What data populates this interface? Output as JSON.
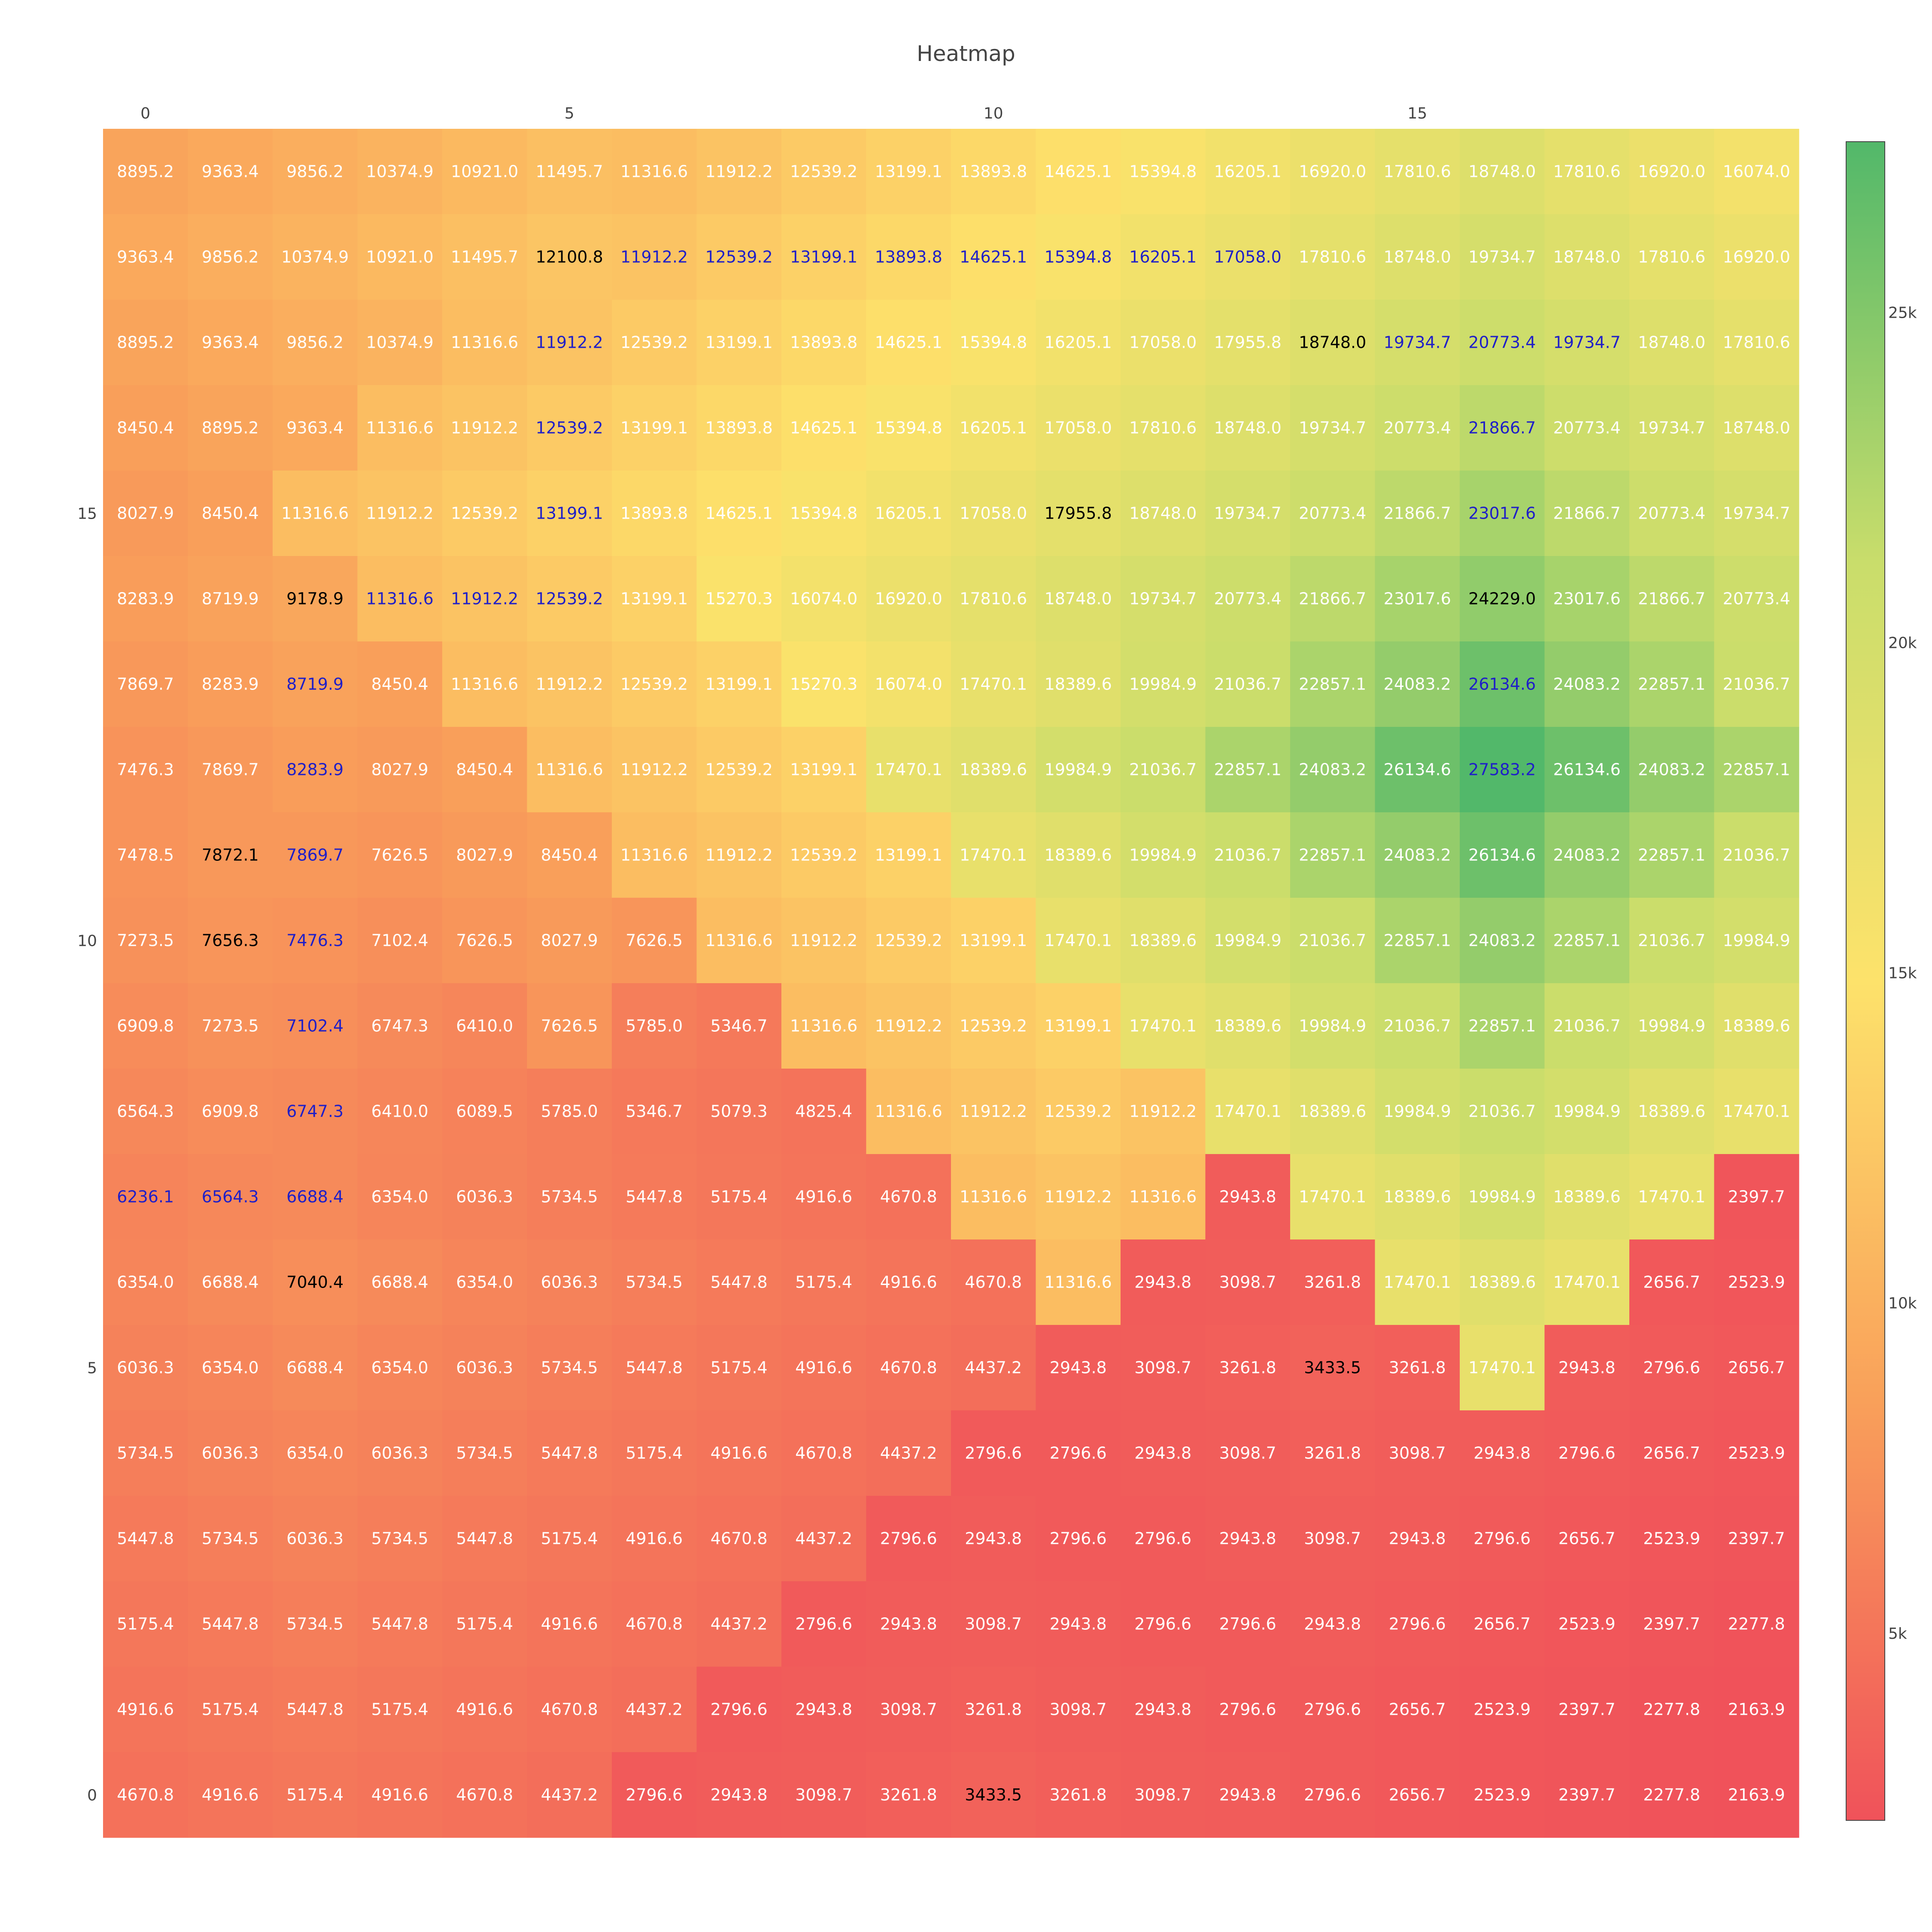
{
  "chart_data": {
    "type": "heatmap",
    "title": "Heatmap",
    "x_ticks": [
      "0",
      "5",
      "10",
      "15"
    ],
    "y_ticks": [
      "0",
      "5",
      "10",
      "15"
    ],
    "x_tick_values": [
      0,
      5,
      10,
      15
    ],
    "y_tick_values": [
      0,
      5,
      10,
      15
    ],
    "colorbar": {
      "ticks": [
        "5k",
        "10k",
        "15k",
        "20k",
        "25k"
      ],
      "tick_values": [
        5000,
        10000,
        15000,
        20000,
        25000
      ],
      "zmin": 2163.9,
      "zmax": 27583.2,
      "colorscale": [
        "#f0525a",
        "#f9a05a",
        "#fde26b",
        "#c9dd6b",
        "#52b86a"
      ]
    },
    "rows_top_to_bottom": [
      [
        8895.2,
        9363.4,
        9856.2,
        10374.9,
        10921.0,
        11495.7,
        11316.6,
        11912.2,
        12539.2,
        13199.1,
        13893.8,
        14625.1,
        15394.8,
        16205.1,
        16920.0,
        17810.6,
        18748.0,
        17810.6,
        16920.0,
        16074.0
      ],
      [
        9363.4,
        9856.2,
        10374.9,
        10921.0,
        11495.7,
        12100.8,
        11912.2,
        12539.2,
        13199.1,
        13893.8,
        14625.1,
        15394.8,
        16205.1,
        17058.0,
        17810.6,
        18748.0,
        19734.7,
        18748.0,
        17810.6,
        16920.0
      ],
      [
        8895.2,
        9363.4,
        9856.2,
        10374.9,
        11316.6,
        11912.2,
        12539.2,
        13199.1,
        13893.8,
        14625.1,
        15394.8,
        16205.1,
        17058.0,
        17955.8,
        18748.0,
        19734.7,
        20773.4,
        19734.7,
        18748.0,
        17810.6
      ],
      [
        8450.4,
        8895.2,
        9363.4,
        11316.6,
        11912.2,
        12539.2,
        13199.1,
        13893.8,
        14625.1,
        15394.8,
        16205.1,
        17058.0,
        17810.6,
        18748.0,
        19734.7,
        20773.4,
        21866.7,
        20773.4,
        19734.7,
        18748.0
      ],
      [
        8027.9,
        8450.4,
        11316.6,
        11912.2,
        12539.2,
        13199.1,
        13893.8,
        14625.1,
        15394.8,
        16205.1,
        17058.0,
        17955.8,
        18748.0,
        19734.7,
        20773.4,
        21866.7,
        23017.6,
        21866.7,
        20773.4,
        19734.7
      ],
      [
        8283.9,
        8719.9,
        9178.9,
        11316.6,
        11912.2,
        12539.2,
        13199.1,
        15270.3,
        16074.0,
        16920.0,
        17810.6,
        18748.0,
        19734.7,
        20773.4,
        21866.7,
        23017.6,
        24229.0,
        23017.6,
        21866.7,
        20773.4
      ],
      [
        7869.7,
        8283.9,
        8719.9,
        8450.4,
        11316.6,
        11912.2,
        12539.2,
        13199.1,
        15270.3,
        16074.0,
        17470.1,
        18389.6,
        19984.9,
        21036.7,
        22857.1,
        24083.2,
        26134.6,
        24083.2,
        22857.1,
        21036.7
      ],
      [
        7476.3,
        7869.7,
        8283.9,
        8027.9,
        8450.4,
        11316.6,
        11912.2,
        12539.2,
        13199.1,
        17470.1,
        18389.6,
        19984.9,
        21036.7,
        22857.1,
        24083.2,
        26134.6,
        27583.2,
        26134.6,
        24083.2,
        22857.1
      ],
      [
        7478.5,
        7872.1,
        7869.7,
        7626.5,
        8027.9,
        8450.4,
        11316.6,
        11912.2,
        12539.2,
        13199.1,
        17470.1,
        18389.6,
        19984.9,
        21036.7,
        22857.1,
        24083.2,
        26134.6,
        24083.2,
        22857.1,
        21036.7
      ],
      [
        7273.5,
        7656.3,
        7476.3,
        7102.4,
        7626.5,
        8027.9,
        7626.5,
        11316.6,
        11912.2,
        12539.2,
        13199.1,
        17470.1,
        18389.6,
        19984.9,
        21036.7,
        22857.1,
        24083.2,
        22857.1,
        21036.7,
        19984.9
      ],
      [
        6909.8,
        7273.5,
        7102.4,
        6747.3,
        6410.0,
        7626.5,
        5785.0,
        5346.7,
        11316.6,
        11912.2,
        12539.2,
        13199.1,
        17470.1,
        18389.6,
        19984.9,
        21036.7,
        22857.1,
        21036.7,
        19984.9,
        18389.6
      ],
      [
        6564.3,
        6909.8,
        6747.3,
        6410.0,
        6089.5,
        5785.0,
        5346.7,
        5079.3,
        4825.4,
        11316.6,
        11912.2,
        12539.2,
        11912.2,
        17470.1,
        18389.6,
        19984.9,
        21036.7,
        19984.9,
        18389.6,
        17470.1
      ],
      [
        6236.1,
        6564.3,
        6688.4,
        6354.0,
        6036.3,
        5734.5,
        5447.8,
        5175.4,
        4916.6,
        4670.8,
        11316.6,
        11912.2,
        11316.6,
        2943.8,
        17470.1,
        18389.6,
        19984.9,
        18389.6,
        17470.1,
        2397.7
      ],
      [
        6354.0,
        6688.4,
        7040.4,
        6688.4,
        6354.0,
        6036.3,
        5734.5,
        5447.8,
        5175.4,
        4916.6,
        4670.8,
        11316.6,
        2943.8,
        3098.7,
        3261.8,
        17470.1,
        18389.6,
        17470.1,
        2656.7,
        2523.9
      ],
      [
        6036.3,
        6354.0,
        6688.4,
        6354.0,
        6036.3,
        5734.5,
        5447.8,
        5175.4,
        4916.6,
        4670.8,
        4437.2,
        2943.8,
        3098.7,
        3261.8,
        3433.5,
        3261.8,
        17470.1,
        2943.8,
        2796.6,
        2656.7
      ],
      [
        5734.5,
        6036.3,
        6354.0,
        6036.3,
        5734.5,
        5447.8,
        5175.4,
        4916.6,
        4670.8,
        4437.2,
        2796.6,
        2796.6,
        2943.8,
        3098.7,
        3261.8,
        3098.7,
        2943.8,
        2796.6,
        2656.7,
        2523.9
      ],
      [
        5447.8,
        5734.5,
        6036.3,
        5734.5,
        5447.8,
        5175.4,
        4916.6,
        4670.8,
        4437.2,
        2796.6,
        2943.8,
        2796.6,
        2796.6,
        2943.8,
        3098.7,
        2943.8,
        2796.6,
        2656.7,
        2523.9,
        2397.7
      ],
      [
        5175.4,
        5447.8,
        5734.5,
        5447.8,
        5175.4,
        4916.6,
        4670.8,
        4437.2,
        2796.6,
        2943.8,
        3098.7,
        2943.8,
        2796.6,
        2796.6,
        2943.8,
        2796.6,
        2656.7,
        2523.9,
        2397.7,
        2277.8
      ],
      [
        4916.6,
        5175.4,
        5447.8,
        5175.4,
        4916.6,
        4670.8,
        4437.2,
        2796.6,
        2943.8,
        3098.7,
        3261.8,
        3098.7,
        2943.8,
        2796.6,
        2796.6,
        2656.7,
        2523.9,
        2397.7,
        2277.8,
        2163.9
      ],
      [
        4670.8,
        4916.6,
        5175.4,
        4916.6,
        4670.8,
        4437.2,
        2796.6,
        2943.8,
        3098.7,
        3261.8,
        3433.5,
        3261.8,
        3098.7,
        2943.8,
        2796.6,
        2656.7,
        2523.9,
        2397.7,
        2277.8,
        2163.9
      ]
    ],
    "label_colors_top_to_bottom": [
      "wwwwwwwwwwwwwwwwwwww",
      "wwwwwkbbbbbbbbwwwwww",
      "wwwwwbwwwwwwwwkbbbww",
      "wwwwwbwwwwwwwwwwbwww",
      "wwwwwbwwwwwkwwwwbwww",
      "wwkbbbwwwwwwwwwwkwww",
      "wwbwwwwwwwwwwwwwbwww",
      "wwbwwwwwwwwwwwwwbwww",
      "wkbwwwwwwwwwwwwwwwww",
      "wkbwwwwwwwwwwwwwwwww",
      "wwbwwwwwwwwwwwwwwwww",
      "wwbwwwwwwwwwwwwwwwww",
      "bbbwwwwwwwwwwwwwwwww",
      "wwkwwwwwwwwwwwwwwwww",
      "wwwwwwwwwwwwwwkwwwww",
      "wwwwwwwwwwwwwwwwwwww",
      "wwwwwwwwwwwwwwwwwwww",
      "wwwwwwwwwwwwwwwwwwww",
      "wwwwwwwwwwwwwwwwwwww",
      "wwwwwwwwwwkwwwwwwwww"
    ],
    "label_color_key": {
      "w": "#ffffff",
      "k": "#000000",
      "b": "#1f1fc8"
    }
  }
}
